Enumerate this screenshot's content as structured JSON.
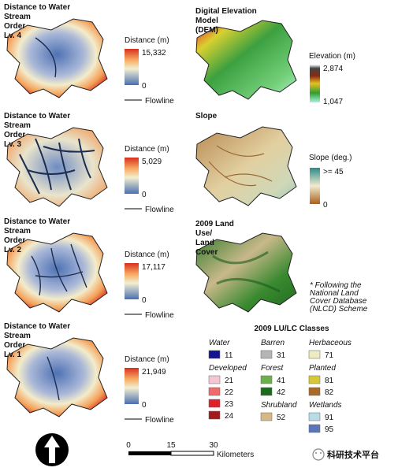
{
  "distance_panels": [
    {
      "title_lines": [
        "Distance to Water",
        "Stream",
        "Order",
        "Lv. 4"
      ],
      "legend_title": "Distance (m)",
      "max_label": "15,332",
      "min_label": "0",
      "line_legend": "Flowline"
    },
    {
      "title_lines": [
        "Distance to Water",
        "Stream",
        "Order",
        "Lv. 3"
      ],
      "legend_title": "Distance (m)",
      "max_label": "5,029",
      "min_label": "0",
      "line_legend": "Flowline"
    },
    {
      "title_lines": [
        "Distance to Water",
        "Stream",
        "Order",
        "Lv. 2"
      ],
      "legend_title": "Distance (m)",
      "max_label": "17,117",
      "min_label": "0",
      "line_legend": "Flowline"
    },
    {
      "title_lines": [
        "Distance to Water",
        "Stream",
        "Order",
        "Lv. 1"
      ],
      "legend_title": "Distance (m)",
      "max_label": "21,949",
      "min_label": "0",
      "line_legend": "Flowline"
    }
  ],
  "dem": {
    "title_lines": [
      "Digital Elevation",
      "Model",
      "(DEM)"
    ],
    "legend_title": "Elevation (m)",
    "max_label": "2,874",
    "min_label": "1,047"
  },
  "slope": {
    "title_lines": [
      "Slope"
    ],
    "legend_title": "Slope (deg.)",
    "max_label": ">= 45",
    "min_label": "0"
  },
  "land_cover": {
    "title_lines": [
      "2009 Land",
      "Use/",
      "Land",
      "Cover"
    ],
    "note_lines": [
      "* Following the",
      "National Land",
      "Cover Database",
      "(NLCD) Scheme"
    ]
  },
  "classes": {
    "title": "2009 LU/LC Classes",
    "columns": [
      [
        {
          "name": "Water",
          "items": [
            {
              "code": 11,
              "color": "#14148c"
            }
          ]
        },
        {
          "name": "Developed",
          "items": [
            {
              "code": 21,
              "color": "#f4c6d2"
            },
            {
              "code": 22,
              "color": "#ee6b6b"
            },
            {
              "code": 23,
              "color": "#e0202a"
            },
            {
              "code": 24,
              "color": "#a21c1c"
            }
          ]
        }
      ],
      [
        {
          "name": "Barren",
          "items": [
            {
              "code": 31,
              "color": "#b5b5b5"
            }
          ]
        },
        {
          "name": "Forest",
          "items": [
            {
              "code": 41,
              "color": "#6cb04c"
            },
            {
              "code": 42,
              "color": "#1c6a1c"
            }
          ]
        },
        {
          "name": "Shrubland",
          "items": [
            {
              "code": 52,
              "color": "#d8b887"
            }
          ]
        }
      ],
      [
        {
          "name": "Herbaceous",
          "items": [
            {
              "code": 71,
              "color": "#ececc0"
            }
          ]
        },
        {
          "name": "Planted",
          "items": [
            {
              "code": 81,
              "color": "#d8c838"
            },
            {
              "code": 82,
              "color": "#a86a28"
            }
          ]
        },
        {
          "name": "Wetlands",
          "items": [
            {
              "code": 91,
              "color": "#b8dce8"
            },
            {
              "code": 95,
              "color": "#5a76b6"
            }
          ]
        }
      ]
    ]
  },
  "scale_bar": {
    "ticks": [
      "0",
      "15",
      "30"
    ],
    "unit": "Kilometers"
  },
  "watermark": "科研技术平台"
}
